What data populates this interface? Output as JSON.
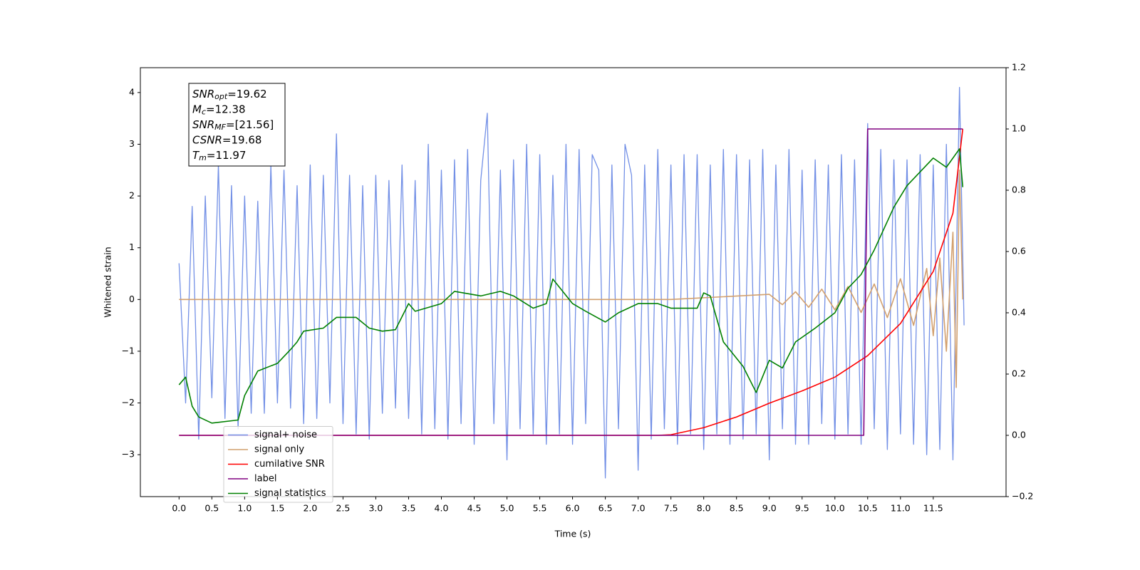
{
  "chart_data": {
    "type": "line",
    "xlabel": "Time (s)",
    "ylabel": "Whitened strain",
    "xlim": [
      -0.59,
      12.61
    ],
    "ylim": [
      -3.81,
      4.48
    ],
    "y2lim": [
      -0.2,
      1.2
    ],
    "xticks": [
      {
        "value": 0,
        "label": "0.0"
      },
      0.5,
      {
        "value": 1,
        "label": "1.0"
      },
      1.5,
      {
        "value": 2,
        "label": "2.0"
      },
      2.5,
      {
        "value": 3,
        "label": "3.0"
      },
      3.5,
      {
        "value": 4,
        "label": "4.0"
      },
      4.5,
      {
        "value": 5,
        "label": "5.0"
      },
      5.5,
      {
        "value": 6,
        "label": "6.0"
      },
      6.5,
      {
        "value": 7,
        "label": "7.0"
      },
      7.5,
      {
        "value": 8,
        "label": "8.0"
      },
      8.5,
      {
        "value": 9,
        "label": "9.0"
      },
      9.5,
      {
        "value": 10,
        "label": "10.0"
      },
      10.5,
      {
        "value": 11,
        "label": "11.0"
      },
      11.5
    ],
    "yticks": [
      {
        "value": -3,
        "label": "−3"
      },
      {
        "value": -2,
        "label": "−2"
      },
      {
        "value": -1,
        "label": "−1"
      },
      0,
      1,
      2,
      3,
      4
    ],
    "y2ticks": [
      {
        "value": -0.2,
        "label": "−0.2"
      },
      {
        "value": 0,
        "label": "0.0"
      },
      0.2,
      0.4,
      0.6,
      0.8,
      {
        "value": 1,
        "label": "1.0"
      },
      1.2
    ],
    "legend_position": "lower left",
    "annotation": [
      {
        "name": "SNR",
        "subscript": "opt",
        "text": "=19.62"
      },
      {
        "name": "M",
        "subscript": "c",
        "text": "=12.38"
      },
      {
        "name": "SNR",
        "subscript": "MF",
        "text": "=[21.56]"
      },
      {
        "name": "CSNR",
        "subscript": null,
        "text": "=19.68"
      },
      {
        "name": "T",
        "subscript": "m",
        "text": "=11.97"
      }
    ],
    "series": [
      {
        "name": "signal+ noise",
        "color": "#7390e6",
        "axis": "y",
        "x": [
          0,
          0.1,
          0.2,
          0.3,
          0.4,
          0.5,
          0.6,
          0.7,
          0.8,
          0.9,
          1,
          1.1,
          1.2,
          1.3,
          1.4,
          1.5,
          1.6,
          1.7,
          1.8,
          1.9,
          2,
          2.1,
          2.2,
          2.3,
          2.4,
          2.5,
          2.6,
          2.7,
          2.8,
          2.9,
          3,
          3.1,
          3.2,
          3.3,
          3.4,
          3.5,
          3.6,
          3.7,
          3.8,
          3.9,
          4,
          4.1,
          4.2,
          4.3,
          4.4,
          4.5,
          4.6,
          4.7,
          4.8,
          4.9,
          5,
          5.1,
          5.2,
          5.3,
          5.4,
          5.5,
          5.6,
          5.7,
          5.8,
          5.9,
          6,
          6.1,
          6.2,
          6.3,
          6.4,
          6.5,
          6.6,
          6.7,
          6.8,
          6.9,
          7,
          7.1,
          7.2,
          7.3,
          7.4,
          7.5,
          7.6,
          7.7,
          7.8,
          7.9,
          8,
          8.1,
          8.2,
          8.3,
          8.4,
          8.5,
          8.6,
          8.7,
          8.8,
          8.9,
          9,
          9.1,
          9.2,
          9.3,
          9.4,
          9.5,
          9.6,
          9.7,
          9.8,
          9.9,
          10,
          10.1,
          10.2,
          10.3,
          10.4,
          10.5,
          10.6,
          10.7,
          10.8,
          10.9,
          11,
          11.1,
          11.2,
          11.3,
          11.4,
          11.5,
          11.6,
          11.7,
          11.8,
          11.9,
          11.97
        ],
        "values": [
          0.7,
          -2.0,
          1.8,
          -2.7,
          2.0,
          -1.9,
          2.6,
          -2.3,
          2.2,
          -2.5,
          2.0,
          -2.2,
          1.9,
          -2.2,
          2.6,
          -2.0,
          2.5,
          -2.1,
          2.2,
          -2.4,
          2.6,
          -2.3,
          2.4,
          -2.0,
          3.2,
          -2.4,
          2.4,
          -2.6,
          2.2,
          -2.7,
          2.4,
          -2.2,
          2.3,
          -2.1,
          2.6,
          -2.3,
          2.3,
          -2.6,
          3.0,
          -2.5,
          2.5,
          -2.7,
          2.7,
          -2.4,
          2.9,
          -2.8,
          2.3,
          3.6,
          -2.4,
          2.5,
          -3.1,
          2.7,
          -2.5,
          3.0,
          -2.6,
          2.8,
          -2.8,
          2.4,
          -2.6,
          3.0,
          -2.8,
          2.9,
          -2.4,
          2.8,
          2.5,
          -3.45,
          2.6,
          -2.5,
          3.0,
          2.4,
          -3.3,
          2.6,
          -2.7,
          2.9,
          -2.5,
          2.6,
          -2.8,
          2.8,
          -2.6,
          2.8,
          -2.9,
          2.6,
          -2.6,
          2.9,
          -2.8,
          2.8,
          -2.7,
          2.7,
          -2.6,
          2.9,
          -3.1,
          2.6,
          -2.5,
          2.9,
          -2.8,
          2.5,
          -2.8,
          2.7,
          -2.4,
          2.6,
          -2.7,
          2.8,
          -2.6,
          2.7,
          -2.8,
          3.4,
          -2.5,
          2.9,
          -2.9,
          2.7,
          -2.6,
          2.7,
          -2.8,
          2.8,
          -3.0,
          2.6,
          -2.9,
          3.0,
          -3.1,
          4.1,
          -0.5
        ]
      },
      {
        "name": "signal only",
        "color": "#d2a06e",
        "axis": "y",
        "x": [
          0,
          7.5,
          9.0,
          9.2,
          9.4,
          9.6,
          9.8,
          10.0,
          10.2,
          10.4,
          10.6,
          10.8,
          11.0,
          11.2,
          11.4,
          11.5,
          11.6,
          11.7,
          11.8,
          11.85,
          11.9,
          11.95
        ],
        "values": [
          0,
          0,
          0.1,
          -0.1,
          0.15,
          -0.15,
          0.2,
          -0.2,
          0.25,
          -0.25,
          0.3,
          -0.35,
          0.4,
          -0.5,
          0.6,
          -0.7,
          0.8,
          -1.0,
          1.3,
          -1.7,
          2.5,
          0
        ]
      },
      {
        "name": "cumilative SNR",
        "color": "#ff0000",
        "axis": "y2",
        "x": [
          0,
          7.3,
          7.5,
          8.0,
          8.5,
          9.0,
          9.5,
          10.0,
          10.5,
          11.0,
          11.5,
          11.8,
          11.95
        ],
        "values": [
          0,
          0,
          0.002,
          0.025,
          0.06,
          0.105,
          0.145,
          0.19,
          0.26,
          0.365,
          0.535,
          0.725,
          1.0
        ]
      },
      {
        "name": "label",
        "color": "#800080",
        "axis": "y2",
        "x": [
          0,
          10.44,
          10.5,
          11.95
        ],
        "values": [
          0,
          0,
          1,
          1
        ]
      },
      {
        "name": "signal statistics",
        "color": "#008000",
        "axis": "y2",
        "x": [
          0,
          0.1,
          0.2,
          0.3,
          0.5,
          0.9,
          1.0,
          1.2,
          1.5,
          1.7,
          1.8,
          1.9,
          2.2,
          2.4,
          2.7,
          2.9,
          3.1,
          3.3,
          3.5,
          3.6,
          4.0,
          4.2,
          4.6,
          4.9,
          5.1,
          5.4,
          5.6,
          5.7,
          6.0,
          6.2,
          6.5,
          6.7,
          7.0,
          7.3,
          7.5,
          7.9,
          8.0,
          8.1,
          8.3,
          8.6,
          8.8,
          9.0,
          9.2,
          9.4,
          9.7,
          10.0,
          10.2,
          10.4,
          10.6,
          10.9,
          11.1,
          11.3,
          11.5,
          11.7,
          11.9,
          11.95
        ],
        "values": [
          0.165,
          0.19,
          0.095,
          0.06,
          0.04,
          0.05,
          0.13,
          0.21,
          0.235,
          0.28,
          0.305,
          0.34,
          0.35,
          0.385,
          0.385,
          0.35,
          0.34,
          0.345,
          0.43,
          0.405,
          0.43,
          0.47,
          0.455,
          0.47,
          0.455,
          0.415,
          0.43,
          0.51,
          0.43,
          0.405,
          0.37,
          0.4,
          0.43,
          0.43,
          0.415,
          0.415,
          0.465,
          0.455,
          0.305,
          0.225,
          0.14,
          0.245,
          0.22,
          0.305,
          0.35,
          0.4,
          0.48,
          0.525,
          0.605,
          0.745,
          0.815,
          0.86,
          0.905,
          0.875,
          0.935,
          0.81
        ]
      }
    ]
  }
}
